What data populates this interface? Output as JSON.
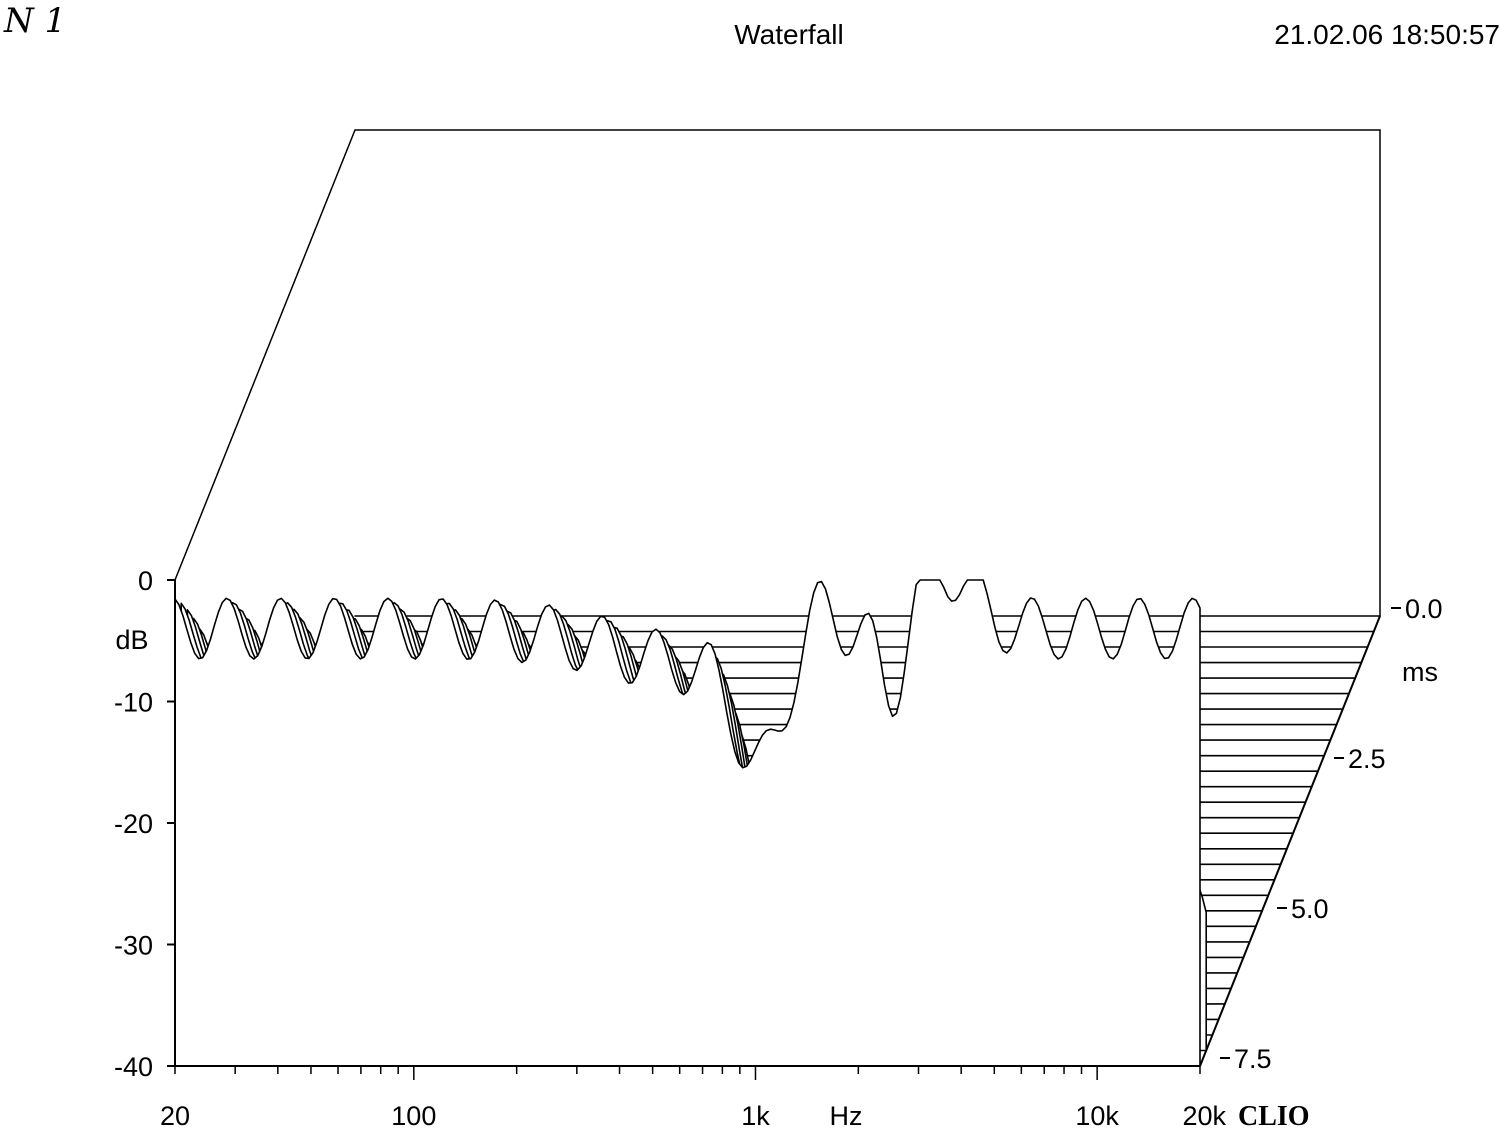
{
  "header": {
    "title": "Waterfall",
    "timestamp": "21.02.06 18:50:57",
    "handwritten_label": "N 1",
    "brand": "CLIO"
  },
  "chart_data": {
    "type": "waterfall",
    "title": "Waterfall",
    "xlabel": "Hz",
    "ylabel": "dB",
    "zlabel": "ms",
    "x_scale": "log",
    "xlim": [
      20,
      20000
    ],
    "ylim": [
      -40,
      0
    ],
    "zlim": [
      0,
      7.5
    ],
    "x_ticks": [
      {
        "value": 20,
        "label": "20"
      },
      {
        "value": 100,
        "label": "100"
      },
      {
        "value": 1000,
        "label": "1k"
      },
      {
        "value": 10000,
        "label": "10k"
      },
      {
        "value": 20000,
        "label": "20k"
      }
    ],
    "y_ticks": [
      {
        "value": 0,
        "label": "0"
      },
      {
        "value": -10,
        "label": "-10"
      },
      {
        "value": -20,
        "label": "-20"
      },
      {
        "value": -30,
        "label": "-30"
      },
      {
        "value": -40,
        "label": "-40"
      }
    ],
    "z_ticks": [
      {
        "value": 0,
        "label": "0.0"
      },
      {
        "value": 2.5,
        "label": "2.5"
      },
      {
        "value": 5,
        "label": "5.0"
      },
      {
        "value": 7.5,
        "label": "7.5"
      }
    ],
    "slice_count": 30,
    "grid": false,
    "line_color": "#000000",
    "fill_color": "#ffffff"
  }
}
